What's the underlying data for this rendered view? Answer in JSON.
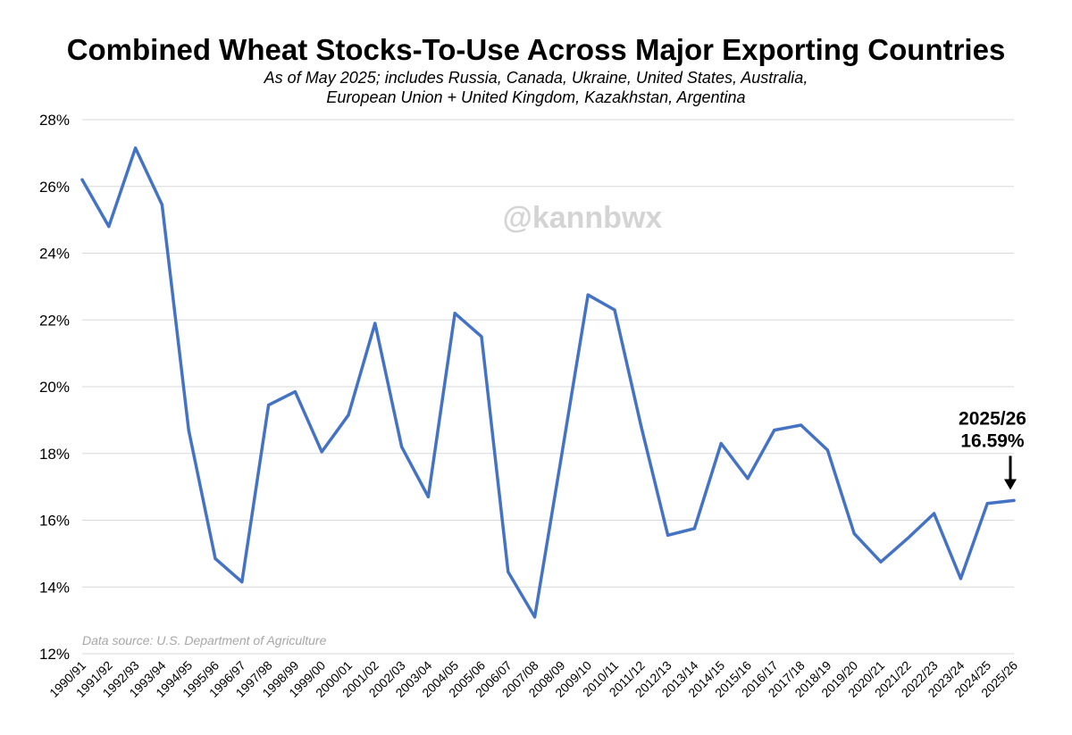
{
  "chart_data": {
    "type": "line",
    "title": "Combined Wheat Stocks-To-Use Across Major Exporting Countries",
    "subtitle_lines": [
      "As of May 2025; includes Russia, Canada, Ukraine, United States, Australia,",
      "European Union + United Kingdom, Kazakhstan, Argentina"
    ],
    "watermark": "@kannbwx",
    "source": "Data source: U.S. Department of Agriculture",
    "xlabel": "",
    "ylabel": "",
    "ylim": [
      12,
      28
    ],
    "yticks": [
      12,
      14,
      16,
      18,
      20,
      22,
      24,
      26,
      28
    ],
    "ytick_labels": [
      "12%",
      "14%",
      "16%",
      "18%",
      "20%",
      "22%",
      "24%",
      "26%",
      "28%"
    ],
    "grid": true,
    "legend": "none",
    "line_color": "#4472c4",
    "categories": [
      "1990/91",
      "1991/92",
      "1992/93",
      "1993/94",
      "1994/95",
      "1995/96",
      "1996/97",
      "1997/98",
      "1998/99",
      "1999/00",
      "2000/01",
      "2001/02",
      "2002/03",
      "2003/04",
      "2004/05",
      "2005/06",
      "2006/07",
      "2007/08",
      "2008/09",
      "2009/10",
      "2010/11",
      "2011/12",
      "2012/13",
      "2013/14",
      "2014/15",
      "2015/16",
      "2016/17",
      "2017/18",
      "2018/19",
      "2019/20",
      "2020/21",
      "2021/22",
      "2022/23",
      "2023/24",
      "2024/25",
      "2025/26"
    ],
    "series": [
      {
        "values": [
          26.2,
          24.8,
          27.15,
          25.45,
          18.7,
          14.85,
          14.15,
          19.45,
          19.85,
          18.05,
          19.15,
          21.9,
          18.2,
          16.7,
          22.2,
          21.5,
          14.45,
          13.1,
          17.9,
          22.75,
          22.3,
          18.8,
          15.55,
          15.75,
          18.3,
          17.25,
          18.7,
          18.85,
          18.1,
          15.6,
          14.75,
          15.45,
          16.2,
          14.25,
          16.5,
          16.59
        ]
      }
    ],
    "annotation": {
      "category": "2025/26",
      "line1": "2025/26",
      "line2": "16.59%"
    }
  }
}
